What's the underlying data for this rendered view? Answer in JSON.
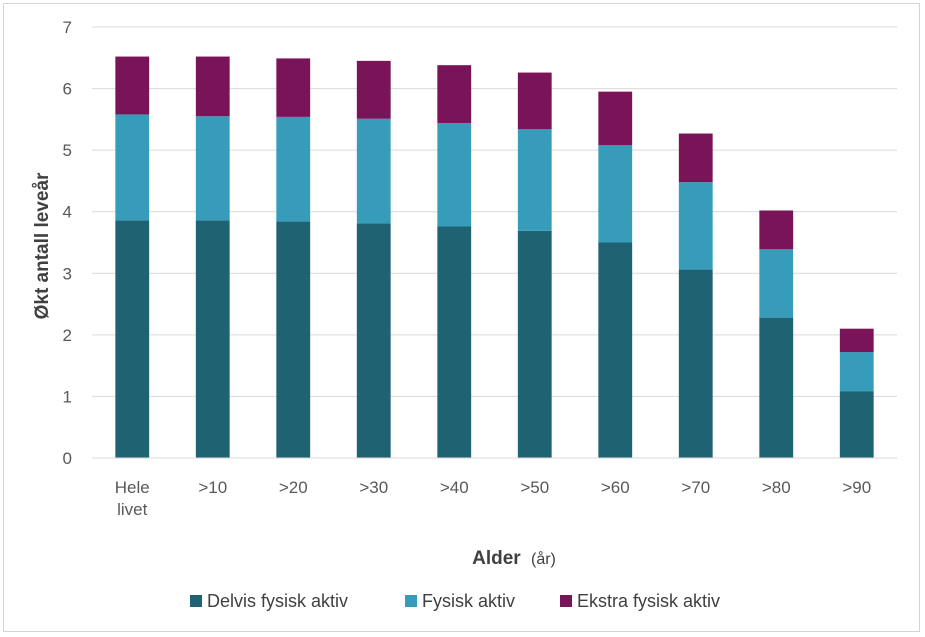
{
  "chart_data": {
    "type": "bar",
    "stacked": true,
    "categories": [
      [
        "Hele",
        "livet"
      ],
      [
        ">10"
      ],
      [
        ">20"
      ],
      [
        ">30"
      ],
      [
        ">40"
      ],
      [
        ">50"
      ],
      [
        ">60"
      ],
      [
        ">70"
      ],
      [
        ">80"
      ],
      [
        ">90"
      ]
    ],
    "series": [
      {
        "name": "Delvis fysisk aktiv",
        "color": "#1f6272",
        "values": [
          3.86,
          3.86,
          3.84,
          3.81,
          3.76,
          3.69,
          3.5,
          3.06,
          2.28,
          1.08
        ]
      },
      {
        "name": "Fysisk aktiv",
        "color": "#379bba",
        "values": [
          1.72,
          1.69,
          1.7,
          1.7,
          1.68,
          1.65,
          1.58,
          1.42,
          1.11,
          0.64
        ]
      },
      {
        "name": "Ekstra fysisk aktiv",
        "color": "#7a1458",
        "values": [
          0.94,
          0.97,
          0.95,
          0.94,
          0.94,
          0.92,
          0.87,
          0.79,
          0.63,
          0.38
        ]
      }
    ],
    "xlabel": "Alder",
    "xlabel_unit": "(år)",
    "ylabel": "Økt antall leveår",
    "ylim": [
      0,
      7
    ],
    "yticks": [
      0,
      1,
      2,
      3,
      4,
      5,
      6,
      7
    ],
    "grid": true,
    "legend_position": "bottom"
  }
}
